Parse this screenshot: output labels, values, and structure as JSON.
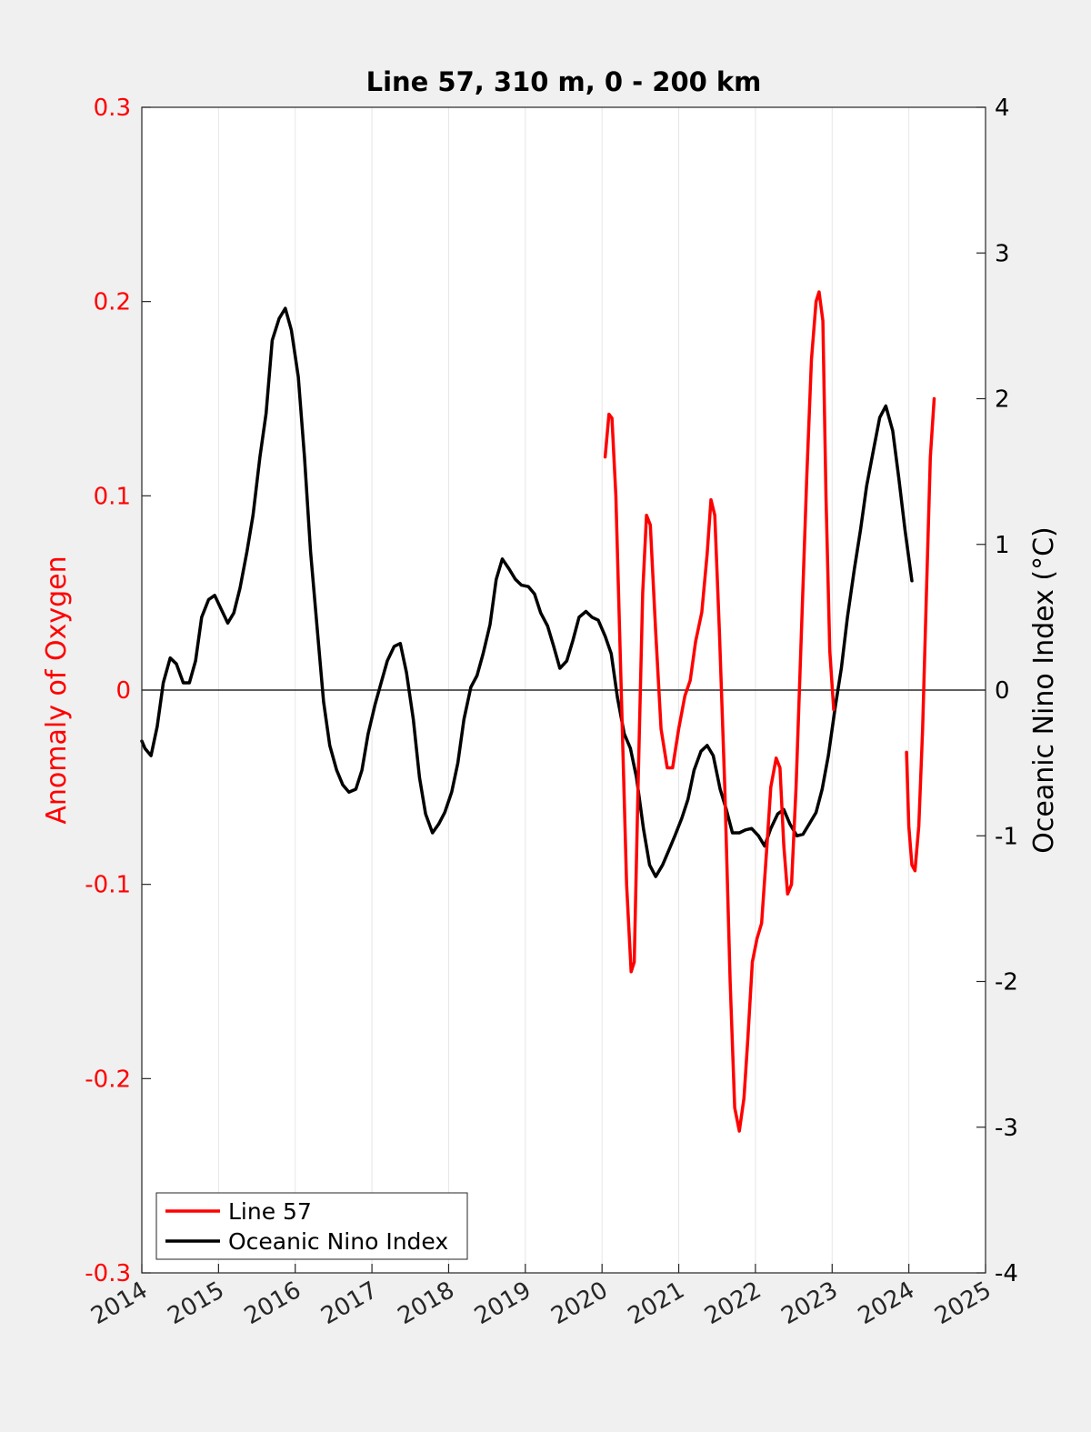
{
  "chart_data": {
    "type": "line",
    "title": "Line 57, 310 m, 0 - 200 km",
    "ylabel_left": "Anomaly of Oxygen",
    "ylabel_right": "Oceanic Nino Index (°C)",
    "xlim": [
      2014,
      2025
    ],
    "ylim_left": [
      -0.3,
      0.3
    ],
    "ylim_right": [
      -4,
      4
    ],
    "x_ticks": [
      "2014",
      "2015",
      "2016",
      "2017",
      "2018",
      "2019",
      "2020",
      "2021",
      "2022",
      "2023",
      "2024",
      "2025"
    ],
    "y_ticks_left": [
      "0.3",
      "0.2",
      "0.1",
      "0",
      "-0.1",
      "-0.2",
      "-0.3"
    ],
    "y_ticks_right": [
      "4",
      "3",
      "2",
      "1",
      "0",
      "-1",
      "-2",
      "-3",
      "-4"
    ],
    "grid": "vertical",
    "legend_position": "bottom-left",
    "colors": {
      "line57": "#ff0000",
      "oni": "#000000",
      "left_axis": "#ff0000",
      "right_axis": "#000000"
    },
    "series": [
      {
        "name": "Line 57",
        "axis": "left",
        "color": "#ff0000",
        "segments": [
          [
            [
              2020.04,
              0.12
            ],
            [
              2020.09,
              0.142
            ],
            [
              2020.13,
              0.14
            ],
            [
              2020.18,
              0.1
            ],
            [
              2020.25,
              0.0
            ],
            [
              2020.32,
              -0.1
            ],
            [
              2020.38,
              -0.145
            ],
            [
              2020.42,
              -0.14
            ],
            [
              2020.47,
              -0.05
            ],
            [
              2020.53,
              0.05
            ],
            [
              2020.58,
              0.09
            ],
            [
              2020.63,
              0.085
            ],
            [
              2020.7,
              0.03
            ],
            [
              2020.77,
              -0.02
            ],
            [
              2020.85,
              -0.04
            ],
            [
              2020.92,
              -0.04
            ],
            [
              2021.0,
              -0.02
            ],
            [
              2021.08,
              -0.003
            ],
            [
              2021.15,
              0.005
            ],
            [
              2021.22,
              0.025
            ],
            [
              2021.3,
              0.04
            ],
            [
              2021.37,
              0.07
            ],
            [
              2021.42,
              0.098
            ],
            [
              2021.47,
              0.09
            ],
            [
              2021.53,
              0.03
            ],
            [
              2021.6,
              -0.05
            ],
            [
              2021.67,
              -0.15
            ],
            [
              2021.73,
              -0.215
            ],
            [
              2021.79,
              -0.227
            ],
            [
              2021.85,
              -0.21
            ],
            [
              2021.9,
              -0.18
            ],
            [
              2021.96,
              -0.14
            ],
            [
              2022.02,
              -0.128
            ],
            [
              2022.08,
              -0.12
            ],
            [
              2022.15,
              -0.08
            ],
            [
              2022.2,
              -0.05
            ],
            [
              2022.27,
              -0.035
            ],
            [
              2022.32,
              -0.04
            ],
            [
              2022.37,
              -0.08
            ],
            [
              2022.42,
              -0.105
            ],
            [
              2022.47,
              -0.1
            ],
            [
              2022.53,
              -0.05
            ],
            [
              2022.6,
              0.03
            ],
            [
              2022.67,
              0.11
            ],
            [
              2022.73,
              0.17
            ],
            [
              2022.79,
              0.2
            ],
            [
              2022.83,
              0.205
            ],
            [
              2022.88,
              0.19
            ],
            [
              2022.92,
              0.1
            ],
            [
              2022.97,
              0.02
            ],
            [
              2023.02,
              -0.01
            ]
          ],
          [
            [
              2023.97,
              -0.032
            ],
            [
              2024.0,
              -0.07
            ],
            [
              2024.04,
              -0.09
            ],
            [
              2024.08,
              -0.093
            ],
            [
              2024.13,
              -0.07
            ],
            [
              2024.18,
              -0.02
            ],
            [
              2024.23,
              0.05
            ],
            [
              2024.28,
              0.12
            ],
            [
              2024.33,
              0.15
            ]
          ]
        ]
      },
      {
        "name": "Oceanic Nino Index",
        "axis": "right",
        "color": "#000000",
        "points": [
          [
            2014.0,
            -0.35
          ],
          [
            2014.04,
            -0.4
          ],
          [
            2014.12,
            -0.45
          ],
          [
            2014.2,
            -0.25
          ],
          [
            2014.28,
            0.05
          ],
          [
            2014.37,
            0.22
          ],
          [
            2014.45,
            0.18
          ],
          [
            2014.54,
            0.05
          ],
          [
            2014.62,
            0.05
          ],
          [
            2014.7,
            0.2
          ],
          [
            2014.78,
            0.5
          ],
          [
            2014.87,
            0.62
          ],
          [
            2014.95,
            0.65
          ],
          [
            2015.04,
            0.55
          ],
          [
            2015.12,
            0.46
          ],
          [
            2015.2,
            0.53
          ],
          [
            2015.28,
            0.7
          ],
          [
            2015.37,
            0.95
          ],
          [
            2015.45,
            1.2
          ],
          [
            2015.54,
            1.6
          ],
          [
            2015.62,
            1.9
          ],
          [
            2015.7,
            2.4
          ],
          [
            2015.79,
            2.55
          ],
          [
            2015.87,
            2.62
          ],
          [
            2015.95,
            2.47
          ],
          [
            2016.04,
            2.15
          ],
          [
            2016.12,
            1.6
          ],
          [
            2016.2,
            0.95
          ],
          [
            2016.29,
            0.4
          ],
          [
            2016.37,
            -0.08
          ],
          [
            2016.45,
            -0.38
          ],
          [
            2016.54,
            -0.55
          ],
          [
            2016.62,
            -0.65
          ],
          [
            2016.7,
            -0.7
          ],
          [
            2016.79,
            -0.68
          ],
          [
            2016.87,
            -0.55
          ],
          [
            2016.95,
            -0.3
          ],
          [
            2017.04,
            -0.1
          ],
          [
            2017.12,
            0.05
          ],
          [
            2017.2,
            0.2
          ],
          [
            2017.29,
            0.3
          ],
          [
            2017.37,
            0.32
          ],
          [
            2017.45,
            0.12
          ],
          [
            2017.54,
            -0.2
          ],
          [
            2017.62,
            -0.6
          ],
          [
            2017.7,
            -0.85
          ],
          [
            2017.79,
            -0.98
          ],
          [
            2017.87,
            -0.92
          ],
          [
            2017.95,
            -0.84
          ],
          [
            2018.04,
            -0.7
          ],
          [
            2018.12,
            -0.5
          ],
          [
            2018.2,
            -0.2
          ],
          [
            2018.29,
            0.02
          ],
          [
            2018.37,
            0.1
          ],
          [
            2018.45,
            0.25
          ],
          [
            2018.54,
            0.45
          ],
          [
            2018.62,
            0.76
          ],
          [
            2018.7,
            0.9
          ],
          [
            2018.79,
            0.83
          ],
          [
            2018.87,
            0.76
          ],
          [
            2018.95,
            0.72
          ],
          [
            2019.04,
            0.71
          ],
          [
            2019.12,
            0.66
          ],
          [
            2019.2,
            0.53
          ],
          [
            2019.29,
            0.44
          ],
          [
            2019.37,
            0.3
          ],
          [
            2019.45,
            0.15
          ],
          [
            2019.54,
            0.2
          ],
          [
            2019.62,
            0.34
          ],
          [
            2019.7,
            0.5
          ],
          [
            2019.79,
            0.54
          ],
          [
            2019.87,
            0.5
          ],
          [
            2019.95,
            0.48
          ],
          [
            2020.04,
            0.37
          ],
          [
            2020.12,
            0.25
          ],
          [
            2020.2,
            -0.05
          ],
          [
            2020.29,
            -0.3
          ],
          [
            2020.37,
            -0.4
          ],
          [
            2020.45,
            -0.6
          ],
          [
            2020.54,
            -0.95
          ],
          [
            2020.62,
            -1.2
          ],
          [
            2020.7,
            -1.28
          ],
          [
            2020.79,
            -1.2
          ],
          [
            2020.87,
            -1.1
          ],
          [
            2020.95,
            -1.0
          ],
          [
            2021.04,
            -0.88
          ],
          [
            2021.12,
            -0.75
          ],
          [
            2021.2,
            -0.55
          ],
          [
            2021.29,
            -0.42
          ],
          [
            2021.37,
            -0.38
          ],
          [
            2021.45,
            -0.45
          ],
          [
            2021.54,
            -0.68
          ],
          [
            2021.62,
            -0.82
          ],
          [
            2021.7,
            -0.98
          ],
          [
            2021.79,
            -0.98
          ],
          [
            2021.87,
            -0.96
          ],
          [
            2021.95,
            -0.95
          ],
          [
            2022.04,
            -1.0
          ],
          [
            2022.12,
            -1.07
          ],
          [
            2022.2,
            -0.95
          ],
          [
            2022.29,
            -0.85
          ],
          [
            2022.37,
            -0.82
          ],
          [
            2022.45,
            -0.92
          ],
          [
            2022.54,
            -1.0
          ],
          [
            2022.62,
            -0.99
          ],
          [
            2022.7,
            -0.92
          ],
          [
            2022.79,
            -0.84
          ],
          [
            2022.87,
            -0.68
          ],
          [
            2022.95,
            -0.45
          ],
          [
            2023.04,
            -0.12
          ],
          [
            2023.12,
            0.15
          ],
          [
            2023.2,
            0.5
          ],
          [
            2023.29,
            0.83
          ],
          [
            2023.37,
            1.1
          ],
          [
            2023.45,
            1.4
          ],
          [
            2023.54,
            1.65
          ],
          [
            2023.62,
            1.87
          ],
          [
            2023.7,
            1.95
          ],
          [
            2023.79,
            1.78
          ],
          [
            2023.87,
            1.45
          ],
          [
            2023.95,
            1.1
          ],
          [
            2024.04,
            0.75
          ]
        ]
      }
    ]
  }
}
